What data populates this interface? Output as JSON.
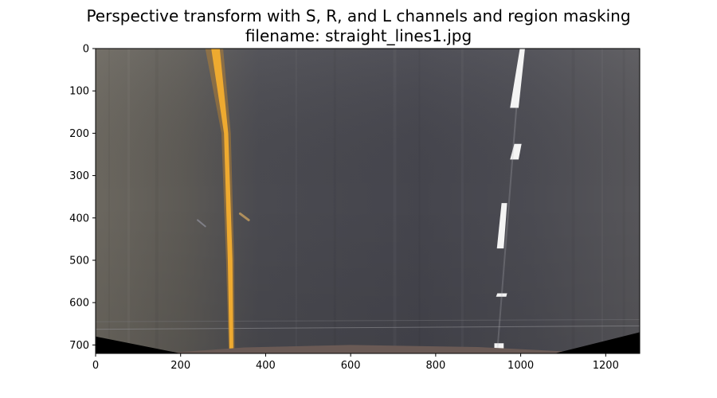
{
  "title_lines": [
    "Perspective transform with S, R, and L channels and region masking",
    "filename: straight_lines1.jpg"
  ],
  "chart_data": {
    "type": "image",
    "title": "Perspective transform with S, R, and L channels and region masking\nfilename: straight_lines1.jpg",
    "xlabel": "",
    "ylabel": "",
    "xlim": [
      0,
      1280
    ],
    "ylim": [
      720,
      0
    ],
    "xticks": [
      0,
      200,
      400,
      600,
      800,
      1000,
      1200
    ],
    "yticks": [
      0,
      100,
      200,
      300,
      400,
      500,
      600,
      700
    ],
    "grid": false,
    "colors": {
      "road": "#45454d",
      "road_left_shade": "#6a6860",
      "yellow_lane": "#e8a72a",
      "white_lane": "#f4f4f4",
      "mask": "#000000",
      "hood": "#6a5a55"
    }
  }
}
